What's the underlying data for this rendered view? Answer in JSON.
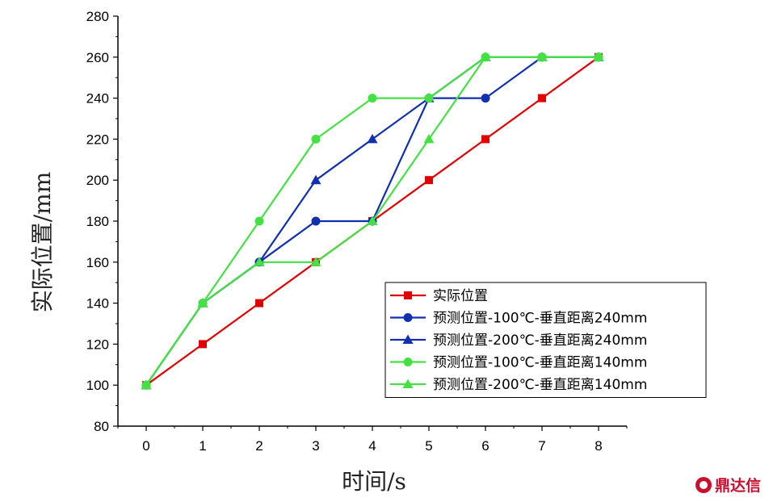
{
  "chart_data": {
    "type": "line",
    "xlabel": "时间/s",
    "ylabel": "实际位置/mm",
    "xlim": [
      -0.5,
      8.5
    ],
    "ylim": [
      80,
      280
    ],
    "xticks": [
      0,
      1,
      2,
      3,
      4,
      5,
      6,
      7,
      8
    ],
    "yticks": [
      80,
      100,
      120,
      140,
      160,
      180,
      200,
      220,
      240,
      260,
      280
    ],
    "grid": false,
    "legend_position": "bottom-right",
    "x": [
      0,
      1,
      2,
      3,
      4,
      5,
      6,
      7,
      8
    ],
    "series": [
      {
        "name": "实际位置",
        "color": "#e00000",
        "marker": "square",
        "values": [
          100,
          120,
          140,
          160,
          180,
          200,
          220,
          240,
          260
        ]
      },
      {
        "name": "预测位置-100℃-垂直距离240mm",
        "color": "#1030b0",
        "marker": "circle",
        "values": [
          100,
          140,
          160,
          180,
          180,
          240,
          240,
          260,
          260
        ]
      },
      {
        "name": "预测位置-200℃-垂直距离240mm",
        "color": "#1030b0",
        "marker": "triangle",
        "values": [
          100,
          140,
          160,
          200,
          220,
          240,
          260,
          260,
          260
        ]
      },
      {
        "name": "预测位置-100℃-垂直距离140mm",
        "color": "#44e044",
        "marker": "circle",
        "values": [
          100,
          140,
          180,
          220,
          240,
          240,
          260,
          260,
          260
        ]
      },
      {
        "name": "预测位置-200℃-垂直距离140mm",
        "color": "#44e044",
        "marker": "triangle",
        "values": [
          100,
          140,
          160,
          160,
          180,
          220,
          260,
          260,
          260
        ]
      }
    ]
  },
  "watermark": {
    "text": "鼎达信",
    "icon": "logo-circle-icon"
  }
}
